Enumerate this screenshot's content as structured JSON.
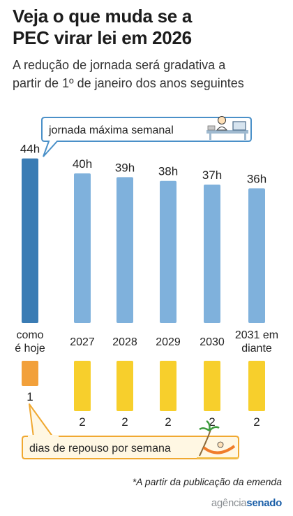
{
  "header": {
    "title_line1": "Veja o que muda se a",
    "title_line2": "PEC virar lei em 2026",
    "subtitle_line1": "A redução de jornada será gradativa a",
    "subtitle_line2": "partir de 1º de janeiro dos anos seguintes"
  },
  "callouts": {
    "hours": "jornada máxima semanal",
    "rest": "dias de repouso por semana"
  },
  "footnote": "*A partir da publicação da emenda",
  "brand": {
    "part1": "agência",
    "part2": "senado"
  },
  "chart_data": {
    "type": "bar",
    "categories": [
      "como é hoje",
      "2027",
      "2028",
      "2029",
      "2030",
      "2031 em diante"
    ],
    "category_lines": [
      [
        "como",
        "é hoje"
      ],
      [
        "2027"
      ],
      [
        "2028"
      ],
      [
        "2029"
      ],
      [
        "2030"
      ],
      [
        "2031 em",
        "diante"
      ]
    ],
    "series": [
      {
        "name": "jornada máxima semanal",
        "values": [
          44,
          40,
          39,
          38,
          37,
          36
        ],
        "labels": [
          "44h",
          "40h",
          "39h",
          "38h",
          "37h",
          "36h"
        ]
      },
      {
        "name": "dias de repouso por semana",
        "values": [
          1,
          2,
          2,
          2,
          2,
          2
        ],
        "labels": [
          "1",
          "2",
          "2",
          "2",
          "2",
          "2"
        ]
      }
    ],
    "colors": {
      "current_hours": "#3a7cb4",
      "future_hours": "#7fb1dc",
      "current_rest": "#f2a03a",
      "future_rest": "#f7cf2c"
    }
  }
}
